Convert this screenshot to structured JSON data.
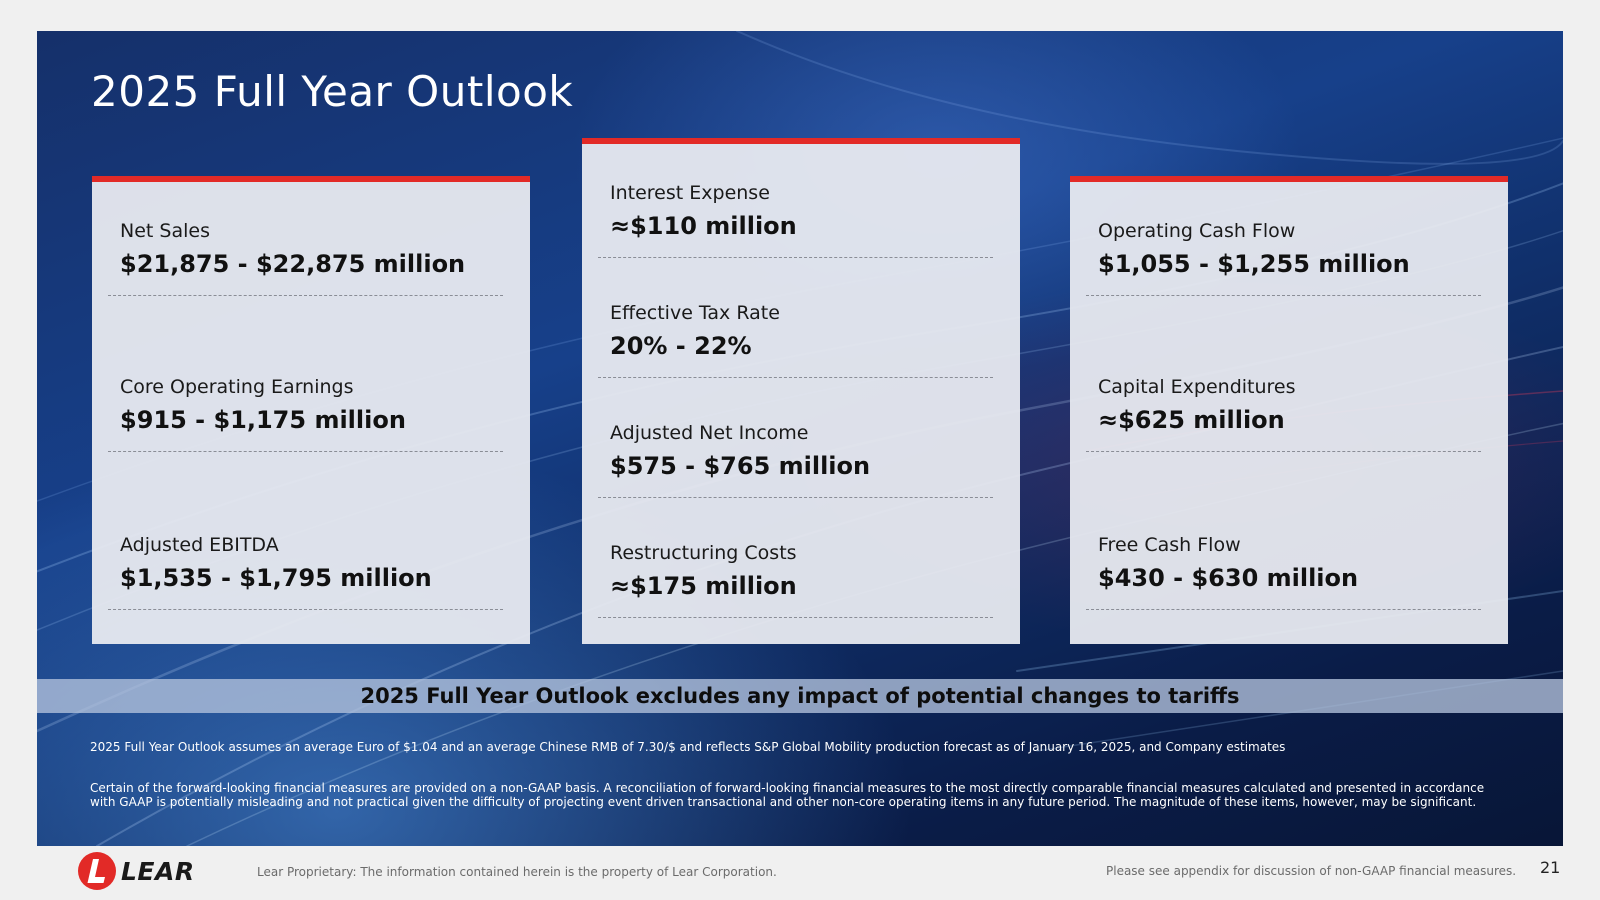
{
  "slide": {
    "title": "2025 Full Year Outlook",
    "cards": {
      "left": [
        {
          "label": "Net Sales",
          "value": "$21,875 - $22,875 million"
        },
        {
          "label": "Core Operating Earnings",
          "value": "$915 - $1,175 million"
        },
        {
          "label": "Adjusted EBITDA",
          "value": "$1,535 - $1,795 million"
        }
      ],
      "middle": [
        {
          "label": "Interest Expense",
          "value": "≈$110 million"
        },
        {
          "label": "Effective Tax Rate",
          "value": "20% - 22%"
        },
        {
          "label": "Adjusted Net Income",
          "value": "$575 - $765 million"
        },
        {
          "label": "Restructuring Costs",
          "value": "≈$175 million"
        }
      ],
      "right": [
        {
          "label": "Operating Cash Flow",
          "value": "$1,055 - $1,255 million"
        },
        {
          "label": "Capital Expenditures",
          "value": "≈$625 million"
        },
        {
          "label": "Free Cash Flow",
          "value": "$430 - $630 million"
        }
      ]
    },
    "banner": "2025 Full Year Outlook excludes any impact of potential changes to tariffs",
    "notes": [
      "2025 Full Year Outlook assumes an average Euro of $1.04 and an average Chinese RMB of 7.30/$ and reflects S&P Global Mobility production forecast as of January 16, 2025, and Company estimates",
      "Certain of the forward-looking financial measures are provided on a non-GAAP basis. A reconciliation of forward-looking financial measures to the most directly comparable financial measures calculated and presented in accordance with GAAP is potentially misleading and not practical given the difficulty of projecting event driven transactional and other non-core operating items in any future period. The magnitude of these items, however, may be significant."
    ]
  },
  "footer": {
    "logo_text": "LEAR",
    "proprietary": "Lear Proprietary: The information contained herein is the property of Lear Corporation.",
    "appendix_note": "Please see appendix for discussion of non-GAAP financial measures.",
    "page_number": "21"
  },
  "colors": {
    "accent_red": "#e22a27",
    "background_blue": "#17408a",
    "card_background": "#e8eaf0"
  }
}
